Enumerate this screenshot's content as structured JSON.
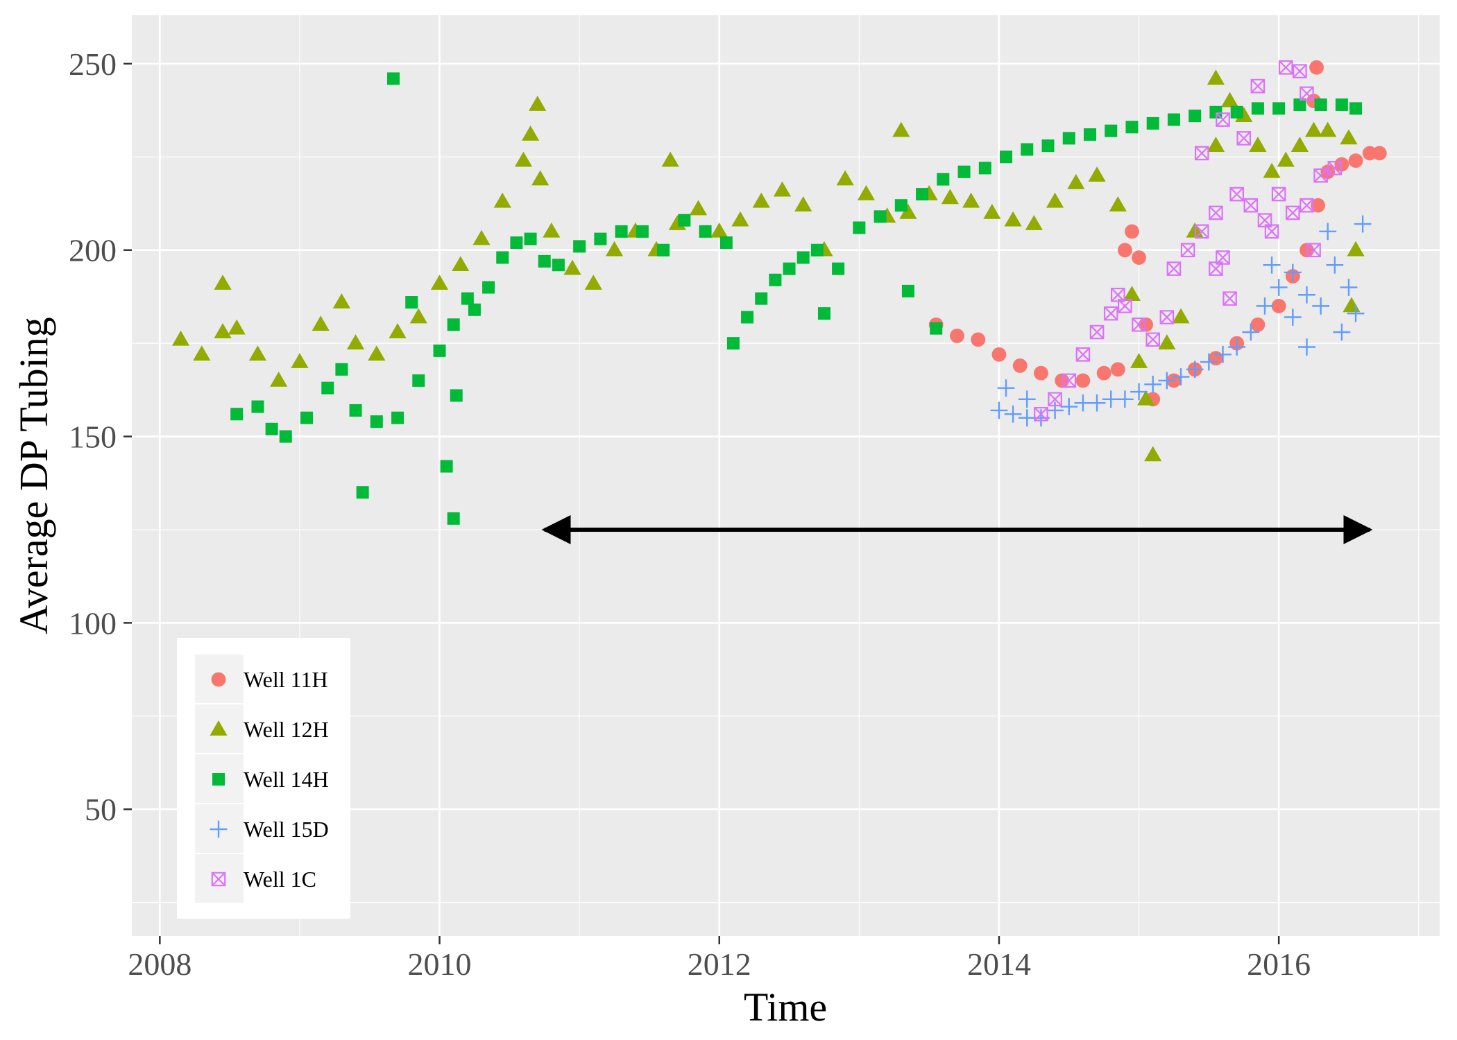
{
  "chart_data": {
    "type": "scatter",
    "title": "",
    "xlabel": "Time",
    "ylabel": "Average DP Tubing",
    "xlim": [
      2007.8,
      2017.15
    ],
    "ylim": [
      16,
      263
    ],
    "x_ticks": [
      2008,
      2010,
      2012,
      2014,
      2016
    ],
    "x_tick_labels": [
      "2008",
      "2010",
      "2012",
      "2014",
      "2016"
    ],
    "y_ticks": [
      50,
      100,
      150,
      200,
      250
    ],
    "y_tick_labels": [
      "50",
      "100",
      "150",
      "200",
      "250"
    ],
    "grid": true,
    "legend_position": "bottom-left (inside)",
    "annotation": {
      "type": "double-headed arrow",
      "x_start": 2010.75,
      "x_end": 2016.65,
      "y": 125,
      "color": "#000000"
    },
    "series": [
      {
        "name": "Well 11H",
        "color": "#F8766D",
        "marker": "circle",
        "points": [
          [
            2013.55,
            180
          ],
          [
            2013.7,
            177
          ],
          [
            2013.85,
            176
          ],
          [
            2014.0,
            172
          ],
          [
            2014.15,
            169
          ],
          [
            2014.3,
            167
          ],
          [
            2014.45,
            165
          ],
          [
            2014.6,
            165
          ],
          [
            2014.75,
            167
          ],
          [
            2014.85,
            168
          ],
          [
            2014.9,
            200
          ],
          [
            2014.95,
            205
          ],
          [
            2015.0,
            198
          ],
          [
            2015.05,
            180
          ],
          [
            2015.1,
            160
          ],
          [
            2015.25,
            165
          ],
          [
            2015.4,
            168
          ],
          [
            2015.55,
            171
          ],
          [
            2015.7,
            175
          ],
          [
            2015.85,
            180
          ],
          [
            2016.0,
            185
          ],
          [
            2016.1,
            193
          ],
          [
            2016.2,
            200
          ],
          [
            2016.28,
            212
          ],
          [
            2016.35,
            221
          ],
          [
            2016.45,
            223
          ],
          [
            2016.55,
            224
          ],
          [
            2016.65,
            226
          ],
          [
            2016.72,
            226
          ],
          [
            2016.27,
            249
          ],
          [
            2016.25,
            240
          ]
        ]
      },
      {
        "name": "Well 12H",
        "color": "#93AA00",
        "marker": "triangle",
        "points": [
          [
            2008.15,
            176
          ],
          [
            2008.3,
            172
          ],
          [
            2008.45,
            178
          ],
          [
            2008.55,
            179
          ],
          [
            2008.7,
            172
          ],
          [
            2008.85,
            165
          ],
          [
            2009.0,
            170
          ],
          [
            2009.15,
            180
          ],
          [
            2009.3,
            186
          ],
          [
            2009.4,
            175
          ],
          [
            2009.55,
            172
          ],
          [
            2009.7,
            178
          ],
          [
            2009.85,
            182
          ],
          [
            2010.0,
            191
          ],
          [
            2010.15,
            196
          ],
          [
            2010.3,
            203
          ],
          [
            2010.45,
            213
          ],
          [
            2010.6,
            224
          ],
          [
            2010.65,
            231
          ],
          [
            2010.72,
            219
          ],
          [
            2010.8,
            205
          ],
          [
            2010.95,
            195
          ],
          [
            2011.1,
            191
          ],
          [
            2011.25,
            200
          ],
          [
            2011.4,
            205
          ],
          [
            2011.55,
            200
          ],
          [
            2011.7,
            207
          ],
          [
            2011.85,
            211
          ],
          [
            2012.0,
            205
          ],
          [
            2012.15,
            208
          ],
          [
            2012.3,
            213
          ],
          [
            2012.45,
            216
          ],
          [
            2012.6,
            212
          ],
          [
            2012.75,
            200
          ],
          [
            2012.9,
            219
          ],
          [
            2013.05,
            215
          ],
          [
            2013.2,
            209
          ],
          [
            2013.35,
            210
          ],
          [
            2013.5,
            215
          ],
          [
            2013.65,
            214
          ],
          [
            2013.8,
            213
          ],
          [
            2013.95,
            210
          ],
          [
            2014.1,
            208
          ],
          [
            2014.25,
            207
          ],
          [
            2014.4,
            213
          ],
          [
            2014.55,
            218
          ],
          [
            2014.7,
            220
          ],
          [
            2014.85,
            212
          ],
          [
            2014.95,
            188
          ],
          [
            2015.0,
            170
          ],
          [
            2015.05,
            160
          ],
          [
            2015.1,
            145
          ],
          [
            2015.2,
            175
          ],
          [
            2015.3,
            182
          ],
          [
            2015.4,
            205
          ],
          [
            2015.55,
            228
          ],
          [
            2015.65,
            240
          ],
          [
            2015.75,
            236
          ],
          [
            2015.85,
            228
          ],
          [
            2015.95,
            221
          ],
          [
            2016.05,
            224
          ],
          [
            2016.15,
            228
          ],
          [
            2016.25,
            232
          ],
          [
            2016.35,
            232
          ],
          [
            2016.5,
            230
          ],
          [
            2016.55,
            200
          ],
          [
            2016.52,
            185
          ],
          [
            2008.45,
            191
          ],
          [
            2010.7,
            239
          ],
          [
            2011.65,
            224
          ],
          [
            2013.3,
            232
          ],
          [
            2015.55,
            246
          ]
        ]
      },
      {
        "name": "Well 14H",
        "color": "#00BA38",
        "marker": "square",
        "points": [
          [
            2008.55,
            156
          ],
          [
            2008.7,
            158
          ],
          [
            2008.8,
            152
          ],
          [
            2008.9,
            150
          ],
          [
            2009.05,
            155
          ],
          [
            2009.2,
            163
          ],
          [
            2009.3,
            168
          ],
          [
            2009.4,
            157
          ],
          [
            2009.55,
            154
          ],
          [
            2009.7,
            155
          ],
          [
            2009.85,
            165
          ],
          [
            2010.0,
            173
          ],
          [
            2010.1,
            180
          ],
          [
            2010.2,
            187
          ],
          [
            2010.25,
            184
          ],
          [
            2010.35,
            190
          ],
          [
            2010.45,
            198
          ],
          [
            2010.55,
            202
          ],
          [
            2010.65,
            203
          ],
          [
            2010.75,
            197
          ],
          [
            2010.85,
            196
          ],
          [
            2011.0,
            201
          ],
          [
            2011.15,
            203
          ],
          [
            2011.3,
            205
          ],
          [
            2011.45,
            205
          ],
          [
            2011.6,
            200
          ],
          [
            2011.75,
            208
          ],
          [
            2011.9,
            205
          ],
          [
            2012.05,
            202
          ],
          [
            2012.1,
            175
          ],
          [
            2012.2,
            182
          ],
          [
            2012.3,
            187
          ],
          [
            2012.4,
            192
          ],
          [
            2012.5,
            195
          ],
          [
            2012.6,
            198
          ],
          [
            2012.7,
            200
          ],
          [
            2012.75,
            183
          ],
          [
            2012.85,
            195
          ],
          [
            2013.0,
            206
          ],
          [
            2013.15,
            209
          ],
          [
            2013.3,
            212
          ],
          [
            2013.45,
            215
          ],
          [
            2013.6,
            219
          ],
          [
            2013.75,
            221
          ],
          [
            2013.9,
            222
          ],
          [
            2014.05,
            225
          ],
          [
            2014.2,
            227
          ],
          [
            2014.35,
            228
          ],
          [
            2014.5,
            230
          ],
          [
            2014.65,
            231
          ],
          [
            2014.8,
            232
          ],
          [
            2014.95,
            233
          ],
          [
            2015.1,
            234
          ],
          [
            2015.25,
            235
          ],
          [
            2015.4,
            236
          ],
          [
            2015.55,
            237
          ],
          [
            2015.7,
            237
          ],
          [
            2015.85,
            238
          ],
          [
            2016.0,
            238
          ],
          [
            2016.15,
            239
          ],
          [
            2016.3,
            239
          ],
          [
            2016.45,
            239
          ],
          [
            2016.55,
            238
          ],
          [
            2009.67,
            246
          ],
          [
            2009.45,
            135
          ],
          [
            2010.05,
            142
          ],
          [
            2010.1,
            128
          ],
          [
            2010.12,
            161
          ],
          [
            2013.35,
            189
          ],
          [
            2013.55,
            179
          ],
          [
            2009.8,
            186
          ]
        ]
      },
      {
        "name": "Well 15D",
        "color": "#619CFF",
        "marker": "plus",
        "points": [
          [
            2014.0,
            157
          ],
          [
            2014.1,
            156
          ],
          [
            2014.2,
            155
          ],
          [
            2014.3,
            155
          ],
          [
            2014.4,
            157
          ],
          [
            2014.5,
            158
          ],
          [
            2014.6,
            159
          ],
          [
            2014.7,
            159
          ],
          [
            2014.8,
            160
          ],
          [
            2014.9,
            160
          ],
          [
            2015.0,
            162
          ],
          [
            2015.1,
            164
          ],
          [
            2015.2,
            165
          ],
          [
            2015.3,
            166
          ],
          [
            2015.4,
            168
          ],
          [
            2015.5,
            170
          ],
          [
            2015.6,
            172
          ],
          [
            2015.7,
            174
          ],
          [
            2015.8,
            178
          ],
          [
            2015.9,
            185
          ],
          [
            2016.0,
            190
          ],
          [
            2016.1,
            194
          ],
          [
            2016.2,
            188
          ],
          [
            2016.3,
            185
          ],
          [
            2016.4,
            196
          ],
          [
            2016.5,
            190
          ],
          [
            2016.55,
            183
          ],
          [
            2016.6,
            207
          ],
          [
            2015.95,
            196
          ],
          [
            2016.1,
            182
          ],
          [
            2016.2,
            174
          ],
          [
            2016.45,
            178
          ],
          [
            2014.05,
            163
          ],
          [
            2014.2,
            160
          ],
          [
            2016.35,
            205
          ]
        ]
      },
      {
        "name": "Well 1C",
        "color": "#DB72FB",
        "marker": "square-cross",
        "points": [
          [
            2014.3,
            156
          ],
          [
            2014.4,
            160
          ],
          [
            2014.5,
            165
          ],
          [
            2014.6,
            172
          ],
          [
            2014.7,
            178
          ],
          [
            2014.8,
            183
          ],
          [
            2014.85,
            188
          ],
          [
            2014.9,
            185
          ],
          [
            2015.0,
            180
          ],
          [
            2015.1,
            176
          ],
          [
            2015.2,
            182
          ],
          [
            2015.25,
            195
          ],
          [
            2015.35,
            200
          ],
          [
            2015.45,
            205
          ],
          [
            2015.55,
            210
          ],
          [
            2015.6,
            198
          ],
          [
            2015.7,
            215
          ],
          [
            2015.8,
            212
          ],
          [
            2015.9,
            208
          ],
          [
            2016.0,
            215
          ],
          [
            2016.1,
            210
          ],
          [
            2016.2,
            212
          ],
          [
            2016.3,
            220
          ],
          [
            2016.4,
            222
          ],
          [
            2016.05,
            249
          ],
          [
            2016.15,
            248
          ],
          [
            2016.2,
            242
          ],
          [
            2015.85,
            244
          ],
          [
            2015.6,
            235
          ],
          [
            2015.75,
            230
          ],
          [
            2015.45,
            226
          ],
          [
            2015.55,
            195
          ],
          [
            2015.65,
            187
          ],
          [
            2015.95,
            205
          ],
          [
            2016.25,
            200
          ]
        ]
      }
    ]
  }
}
